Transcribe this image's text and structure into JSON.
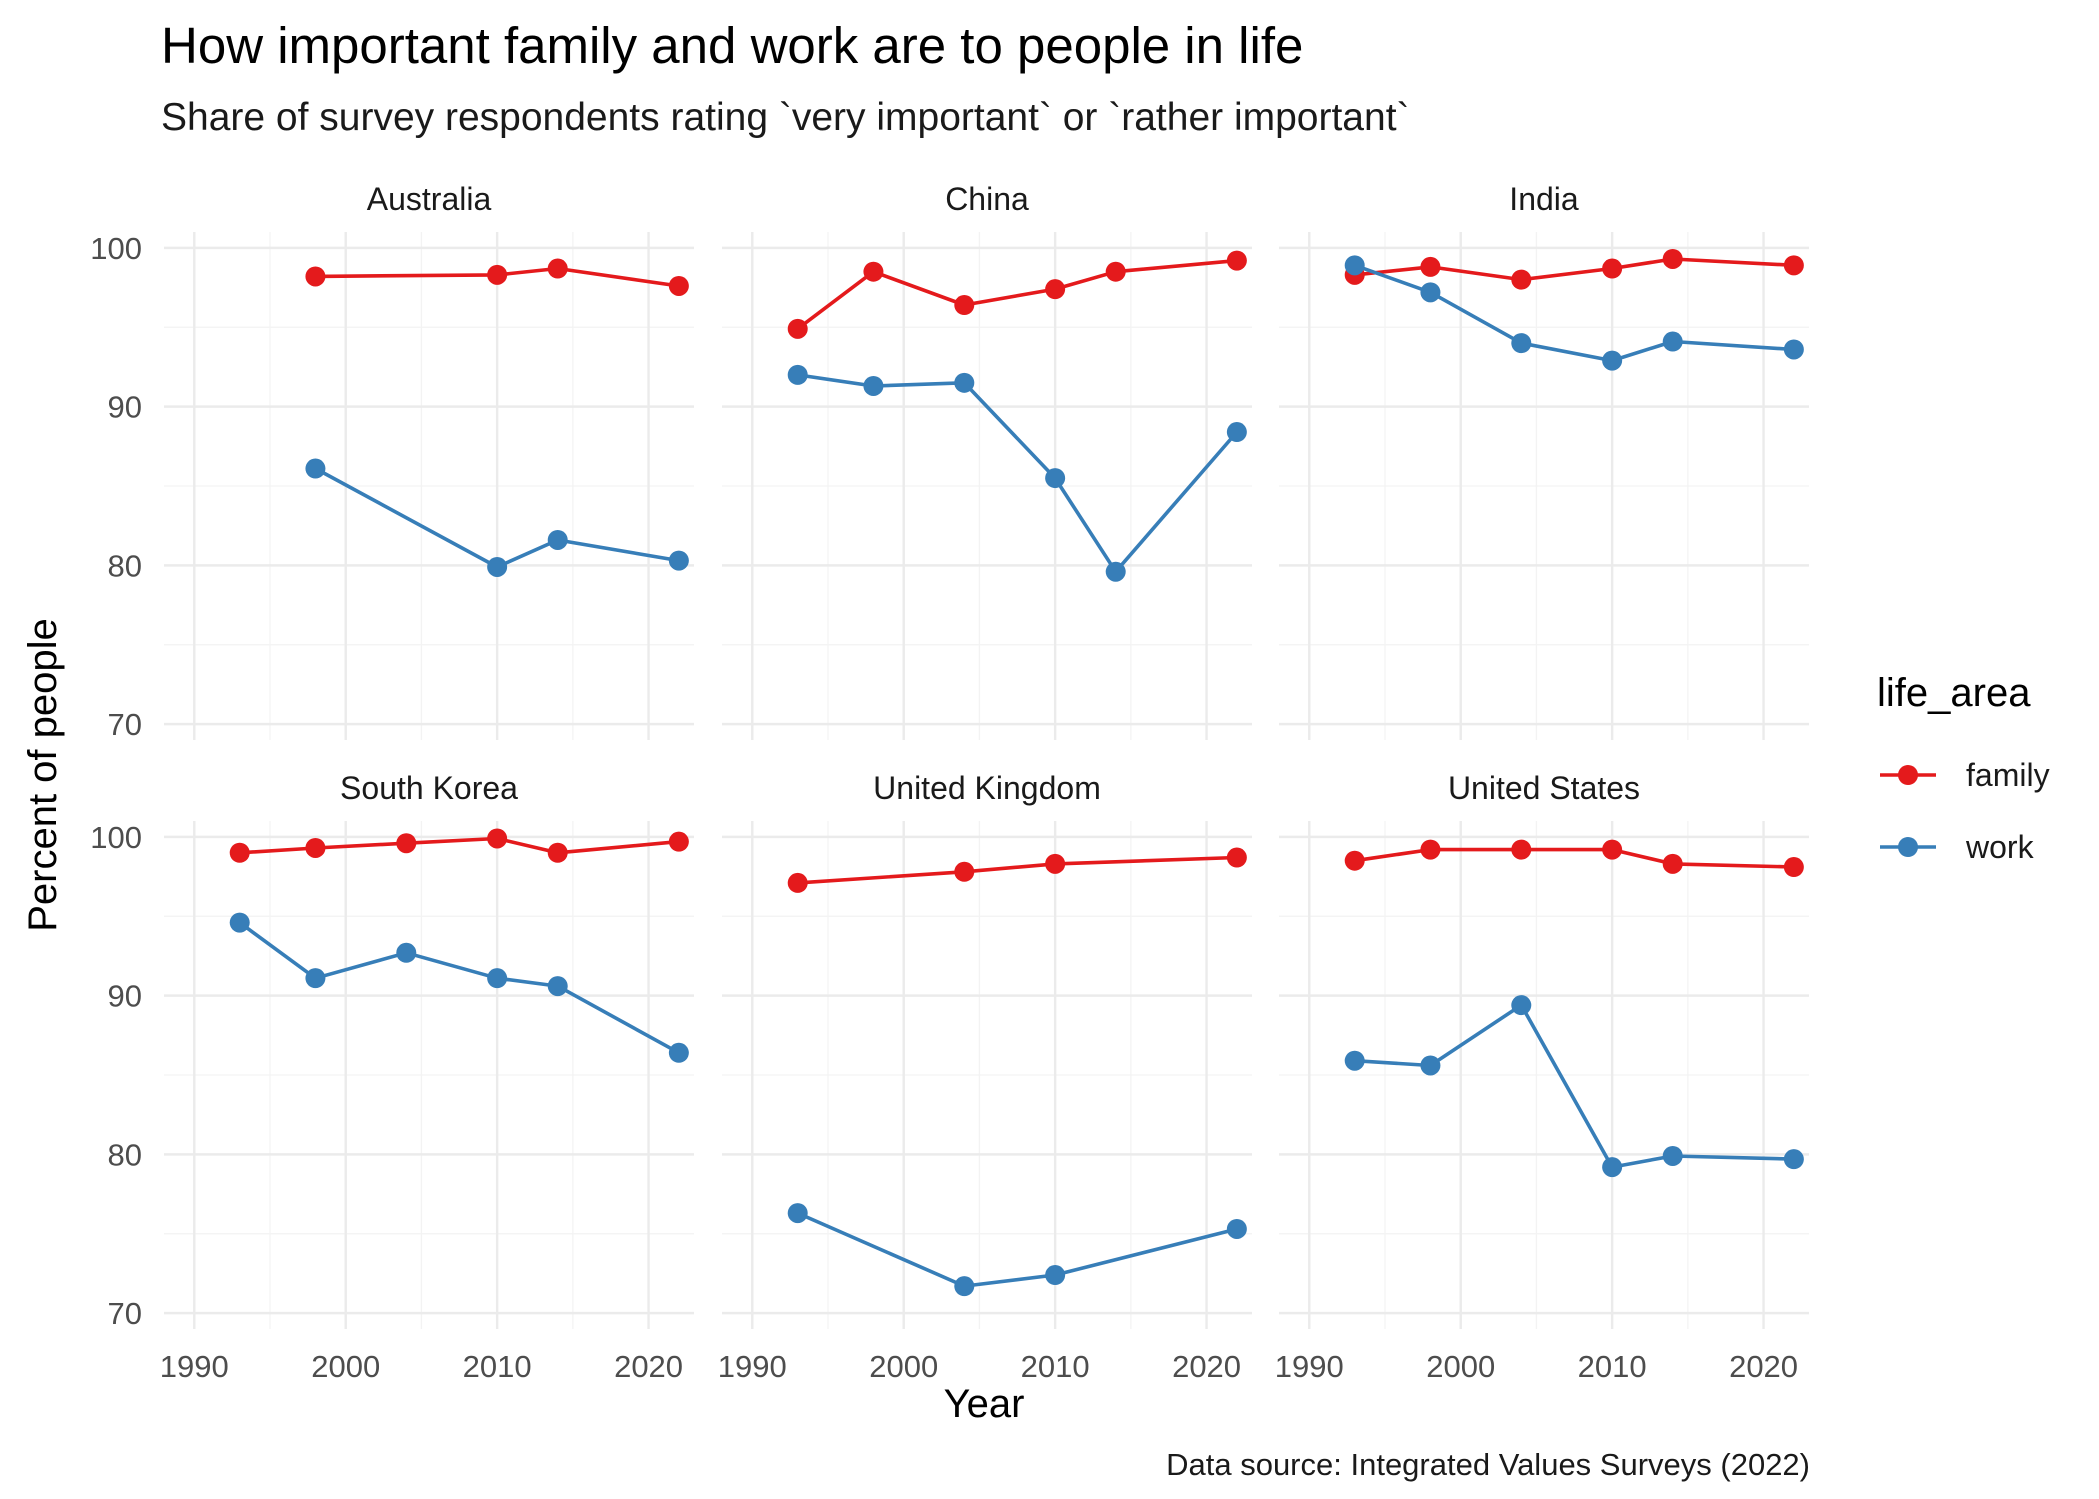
{
  "chart_data": {
    "type": "line",
    "title": "How important family and work are to people in life",
    "subtitle": "Share of survey respondents rating `very important` or `rather important`",
    "xlabel": "Year",
    "ylabel": "Percent of people",
    "caption": "Data source: Integrated Values Surveys (2022)",
    "xlim": [
      1988,
      2023
    ],
    "ylim": [
      69,
      101
    ],
    "x_ticks": [
      1990,
      2000,
      2010,
      2020
    ],
    "y_ticks": [
      70,
      80,
      90,
      100
    ],
    "legend": {
      "title": "life_area",
      "position": "right",
      "entries": [
        {
          "name": "family",
          "color": "#E41A1C"
        },
        {
          "name": "work",
          "color": "#377EB8"
        }
      ]
    },
    "panels": [
      {
        "name": "Australia",
        "series": [
          {
            "name": "family",
            "x": [
              1998,
              2010,
              2014,
              2022
            ],
            "y": [
              98.2,
              98.3,
              98.7,
              97.6
            ]
          },
          {
            "name": "work",
            "x": [
              1998,
              2010,
              2014,
              2022
            ],
            "y": [
              86.1,
              79.9,
              81.6,
              80.3
            ]
          }
        ]
      },
      {
        "name": "China",
        "series": [
          {
            "name": "family",
            "x": [
              1993,
              1998,
              2004,
              2010,
              2014,
              2022
            ],
            "y": [
              94.9,
              98.5,
              96.4,
              97.4,
              98.5,
              99.2
            ]
          },
          {
            "name": "work",
            "x": [
              1993,
              1998,
              2004,
              2010,
              2014,
              2022
            ],
            "y": [
              92.0,
              91.3,
              91.5,
              85.5,
              79.6,
              88.4
            ]
          }
        ]
      },
      {
        "name": "India",
        "series": [
          {
            "name": "family",
            "x": [
              1993,
              1998,
              2004,
              2010,
              2014,
              2022
            ],
            "y": [
              98.3,
              98.8,
              98.0,
              98.7,
              99.3,
              98.9
            ]
          },
          {
            "name": "work",
            "x": [
              1993,
              1998,
              2004,
              2010,
              2014,
              2022
            ],
            "y": [
              98.9,
              97.2,
              94.0,
              92.9,
              94.1,
              93.6
            ]
          }
        ]
      },
      {
        "name": "South Korea",
        "series": [
          {
            "name": "family",
            "x": [
              1993,
              1998,
              2004,
              2010,
              2014,
              2022
            ],
            "y": [
              99.0,
              99.3,
              99.6,
              99.9,
              99.0,
              99.7
            ]
          },
          {
            "name": "work",
            "x": [
              1993,
              1998,
              2004,
              2010,
              2014,
              2022
            ],
            "y": [
              94.6,
              91.1,
              92.7,
              91.1,
              90.6,
              86.4
            ]
          }
        ]
      },
      {
        "name": "United Kingdom",
        "series": [
          {
            "name": "family",
            "x": [
              1993,
              2004,
              2010,
              2022
            ],
            "y": [
              97.1,
              97.8,
              98.3,
              98.7
            ]
          },
          {
            "name": "work",
            "x": [
              1993,
              2004,
              2010,
              2022
            ],
            "y": [
              76.3,
              71.7,
              72.4,
              75.3
            ]
          }
        ]
      },
      {
        "name": "United States",
        "series": [
          {
            "name": "family",
            "x": [
              1993,
              1998,
              2004,
              2010,
              2014,
              2022
            ],
            "y": [
              98.5,
              99.2,
              99.2,
              99.2,
              98.3,
              98.1
            ]
          },
          {
            "name": "work",
            "x": [
              1993,
              1998,
              2004,
              2010,
              2014,
              2022
            ],
            "y": [
              85.9,
              85.6,
              89.4,
              79.2,
              79.9,
              79.7
            ]
          }
        ]
      }
    ]
  }
}
